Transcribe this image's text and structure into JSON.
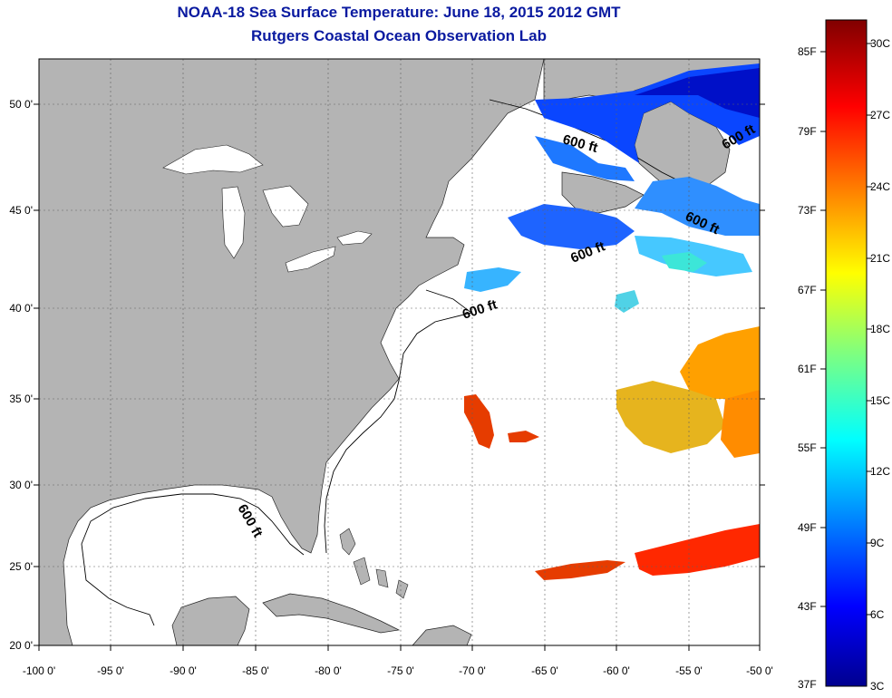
{
  "title": {
    "line1": "NOAA-18 Sea Surface Temperature:  June 18, 2015 2012 GMT",
    "line2": "Rutgers Coastal Ocean Observation Lab"
  },
  "map": {
    "lon_ticks": [
      "-100 0'",
      "-95 0'",
      "-90 0'",
      "-85 0'",
      "-80 0'",
      "-75 0'",
      "-70 0'",
      "-65 0'",
      "-60 0'",
      "-55 0'",
      "-50 0'"
    ],
    "lat_ticks": [
      "50 0'",
      "45 0'",
      "40 0'",
      "35 0'",
      "30 0'",
      "25 0'",
      "20 0'"
    ],
    "contour_labels": [
      "600 ft",
      "600 ft",
      "600 ft",
      "600 ft",
      "600 ft",
      "600 ft"
    ],
    "colors": {
      "land": "#b4b4b4",
      "ocean_no_data": "#ffffff",
      "grid": "#606060",
      "title": "#0a1aa0"
    }
  },
  "colorbar": {
    "fahrenheit_labels": [
      "85F",
      "79F",
      "73F",
      "67F",
      "61F",
      "55F",
      "49F",
      "43F",
      "37F"
    ],
    "celsius_labels": [
      "30C",
      "27C",
      "24C",
      "21C",
      "18C",
      "15C",
      "12C",
      "9C",
      "6C",
      "3C"
    ],
    "colormap": "jet"
  }
}
